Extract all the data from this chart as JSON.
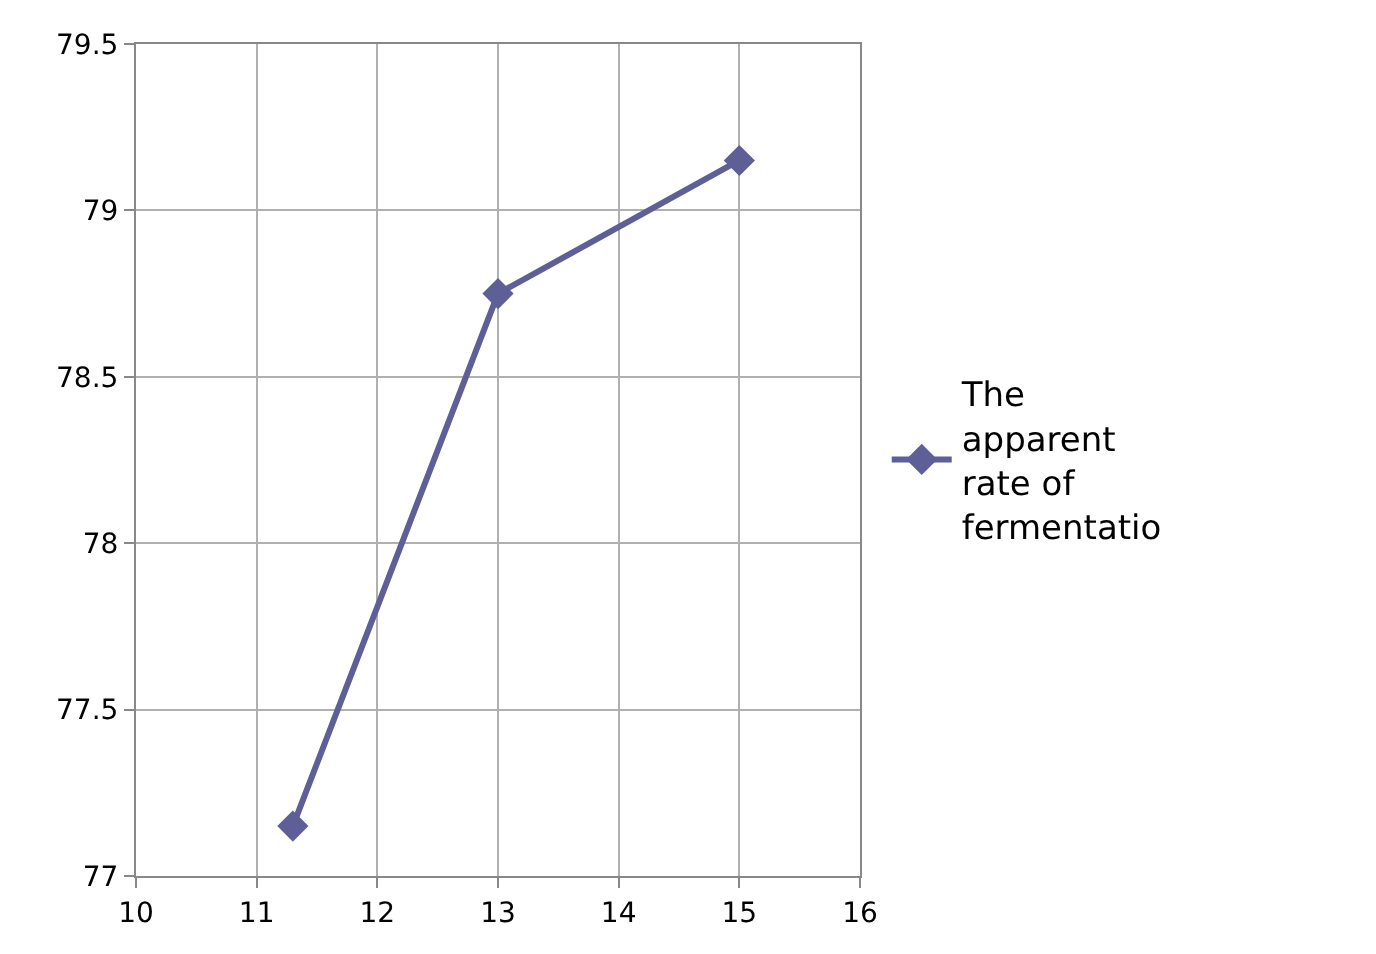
{
  "chart_data": {
    "type": "line",
    "x": [
      11.3,
      13,
      15
    ],
    "series": [
      {
        "name": "The apparent rate of fermentatio",
        "color": "#5f5f98",
        "values": [
          77.15,
          78.75,
          79.15
        ]
      }
    ],
    "xlim": [
      10,
      16
    ],
    "xticks": [
      10,
      11,
      12,
      13,
      14,
      15,
      16
    ],
    "ylim": [
      77,
      79.5
    ],
    "yticks": [
      77,
      77.5,
      78,
      78.5,
      79,
      79.5
    ],
    "grid": true,
    "legend": "right",
    "marker": "diamond",
    "line_style": "solid"
  }
}
